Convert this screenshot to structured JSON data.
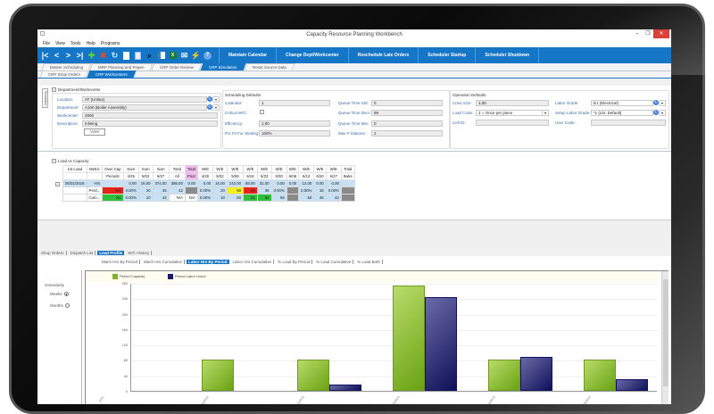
{
  "window": {
    "title": "Capacity Resource Planning Workbench",
    "controls": {
      "minimize": "–",
      "restore": "❐",
      "close": "✕"
    }
  },
  "menu": [
    "File",
    "View",
    "Tools",
    "Help",
    "Programs"
  ],
  "toolbar": {
    "nav_icons": [
      "first-icon",
      "prev-icon",
      "next-icon",
      "last-icon"
    ],
    "action_icons": [
      "add-icon",
      "delete-icon",
      "refresh-icon",
      "new-document-icon",
      "preview-icon",
      "find-icon",
      "layout-icon",
      "excel-icon",
      "email-icon",
      "lightning-icon",
      "help-icon"
    ],
    "buttons": [
      "Maintain Calendar",
      "Change Dept/Workcenter",
      "Reschedule Late Orders",
      "Scheduler Startup",
      "Scheduler Shutdown"
    ]
  },
  "main_tabs": [
    {
      "label": "Master Scheduling",
      "active": false
    },
    {
      "label": "MRP Planning and Pegen",
      "active": false
    },
    {
      "label": "CRP Order Review",
      "active": false
    },
    {
      "label": "CRP Simulation",
      "active": true
    },
    {
      "label": "Reset Source Data",
      "active": false
    }
  ],
  "sub_tabs": [
    {
      "label": "CRP Shop Orders",
      "active": false
    },
    {
      "label": "CRP Workcenters",
      "active": true
    }
  ],
  "side_tab": "Simulation",
  "department_workcenter": {
    "title": "Department/Workcenter",
    "location_label": "Location:",
    "location_value": "AT (Unilux)",
    "department_label": "Department:",
    "department_value": "A100 (Boiler Assembly)",
    "workcenter_label": "Workcenter:",
    "workcenter_value": "4500",
    "description_label": "Description:",
    "description_value": "Inlining",
    "vsm_button": "VSM"
  },
  "scheduling_defaults": {
    "title": "Scheduling Defaults",
    "calendar_label": "Calendar:",
    "calendar_value": "1",
    "critical_label": "Critical W/C:",
    "critical_checked": false,
    "efficiency_label": "Efficiency:",
    "efficiency_value": "1.00",
    "pct_fit_label": "Pct Fit For Slotting:",
    "pct_fit_value": "100%",
    "queue_std_label": "Queue Time Std:",
    "queue_std_value": "0",
    "queue_decr_label": "Queue Time Decr:",
    "queue_decr_value": "99",
    "queue_min_label": "Queue Time Min:",
    "queue_min_value": "0",
    "max_stations_label": "Max # Stations:",
    "max_stations_value": "2"
  },
  "operation_defaults": {
    "title": "Operation Defaults",
    "crew_label": "Crew Size:",
    "crew_value": "1.00",
    "load_code_label": "Load Code:",
    "load_code_value": "2 = Once per piece",
    "cell_label": "Cell ID:",
    "cell_value": "",
    "labor_grade_label": "Labor Grade:",
    "labor_grade_value": "E1 (Electrical)",
    "setup_grade_label": "Setup Labor Grade:",
    "setup_grade_value": "*L (Lbr. Default)",
    "user_code_label": "User Code:",
    "user_code_value": ""
  },
  "load_vs_capacity": {
    "title": "Load vs Capacity",
    "header1": [
      "1st Load",
      "Metric",
      "Over Cap",
      "Sum",
      "Sum",
      "Sum",
      "Total",
      "Total",
      "W/E",
      "W/E",
      "W/E",
      "W/E",
      "W/E",
      "W/E",
      "W/E",
      "W/E",
      "W/E",
      "W/E",
      "Total"
    ],
    "header2": [
      "",
      "",
      "Periods",
      "4/25",
      "5/02",
      "6/27",
      "All",
      "Prior",
      "4/25",
      "5/02",
      "5/09",
      "5/16",
      "5/23",
      "5/30",
      "6/06",
      "6/13",
      "6/20",
      "6/27",
      "8wks"
    ],
    "row_hrs": [
      "05/01/2015",
      "Hrs",
      "",
      "0.00",
      "16.00",
      "374.00",
      "386.00",
      "0.00",
      "0.00",
      "16.00",
      "242.00",
      "88.00",
      "31.00",
      "0.00",
      "0.00",
      "13.00",
      "0.00",
      "0.00",
      ""
    ],
    "row_perd": [
      "",
      "Perd...",
      "Yes",
      "0.00%",
      "20",
      "45",
      "42",
      "",
      "0.00%",
      "20",
      "60",
      "93",
      "36",
      "0.00%",
      "",
      "0.00%",
      "16",
      "0.00%",
      ""
    ],
    "row_cum": [
      "",
      "Cum...",
      "No",
      "0.00%",
      "10",
      "42",
      "N/A",
      "N/A",
      "0.00%",
      "10",
      "50",
      "51",
      "52",
      "56",
      "",
      "50",
      "46",
      "42",
      ""
    ]
  },
  "bottom_tabs": [
    {
      "label": "Shop Orders",
      "active": false
    },
    {
      "label": "Dispatch List",
      "active": false
    },
    {
      "label": "Load Profile",
      "active": true
    },
    {
      "label": "W/C History",
      "active": false
    }
  ],
  "chart_tabs": [
    {
      "label": "Mach Hrs By Period",
      "active": false
    },
    {
      "label": "Mach Hrs Cumulative",
      "active": false
    },
    {
      "label": "Labor Hrs By Period",
      "active": true
    },
    {
      "label": "Labor Hrs Cumulative",
      "active": false
    },
    {
      "label": "% Load By Period",
      "active": false
    },
    {
      "label": "% Load Cumulative",
      "active": false
    },
    {
      "label": "% Load Both",
      "active": false
    }
  ],
  "granularity": {
    "label": "Granularity",
    "options": [
      {
        "label": "Weeks",
        "selected": true
      },
      {
        "label": "Months",
        "selected": false
      }
    ]
  },
  "colors": {
    "accent": "#1576c8",
    "capacity": "#7fb52a",
    "labor": "#1a1a6a",
    "over": "#e8231b",
    "ok": "#2fbf3a",
    "warn": "#f5ee1e"
  },
  "chart_data": {
    "type": "bar",
    "title": "",
    "categories": [
      "prior",
      "04/25/2015",
      "05/02/2015",
      "05/09/2015",
      "05/16/2015",
      "05/23/2015"
    ],
    "series": [
      {
        "name": "Period Capacity",
        "values": [
          0,
          80,
          80,
          272,
          80,
          80
        ]
      },
      {
        "name": "Period Labor Hours",
        "values": [
          0,
          0,
          16,
          242,
          88,
          31
        ]
      }
    ],
    "yticks": [
      0,
      40,
      80,
      120,
      160,
      200,
      240,
      280
    ],
    "ylim": [
      0,
      280
    ],
    "xlabel": "",
    "ylabel": "",
    "grid": true,
    "legend_position": "top"
  }
}
